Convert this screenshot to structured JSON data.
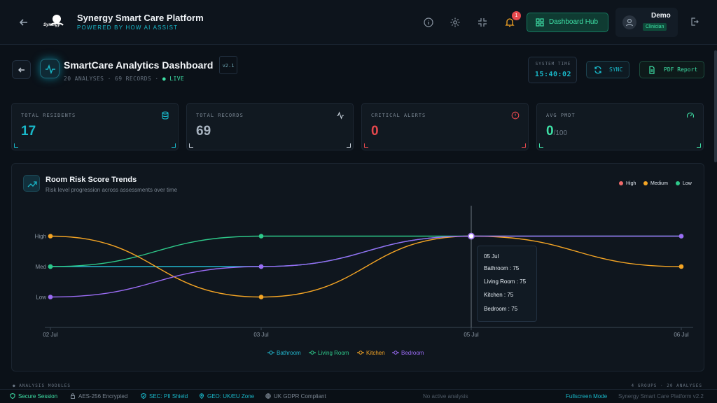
{
  "header": {
    "app_title": "Synergy Smart Care Platform",
    "app_subtitle": "POWERED BY HOW AI ASSIST",
    "logo_text": "Synergy",
    "notification_count": "1",
    "hub_button": "Dashboard Hub",
    "user_name": "Demo",
    "user_role": "Clinician"
  },
  "page": {
    "title": "SmartCare Analytics Dashboard",
    "version": "v2.1",
    "meta_prefix": "20 ANALYSES · 69 RECORDS · ",
    "meta_live": "● LIVE",
    "system_time_label": "SYSTEM TIME",
    "system_time": "15:40:02",
    "sync_label": "SYNC",
    "pdf_label": "PDF Report"
  },
  "stats": [
    {
      "label": "TOTAL RESIDENTS",
      "value": "17",
      "color": "#19b8c9"
    },
    {
      "label": "TOTAL RECORDS",
      "value": "69",
      "color": "#a8b3bf"
    },
    {
      "label": "CRITICAL ALERTS",
      "value": "0",
      "color": "#e5484d"
    },
    {
      "label": "AVG PMDT",
      "value": "0",
      "suffix": "/100",
      "color": "#3ee0a6"
    }
  ],
  "chart_card": {
    "title": "Room Risk Score Trends",
    "subtitle": "Risk level progression across assessments over time",
    "risk_legend": [
      {
        "label": "High",
        "color": "#f06a6a"
      },
      {
        "label": "Medium",
        "color": "#f5a524"
      },
      {
        "label": "Low",
        "color": "#2ec98a"
      }
    ]
  },
  "chart_data": {
    "type": "line",
    "x": [
      "02 Jul",
      "03 Jul",
      "05 Jul",
      "06 Jul"
    ],
    "y_tick_labels": [
      "Low",
      "Med",
      "High"
    ],
    "y_tick_values": [
      25,
      50,
      75
    ],
    "ylim": [
      0,
      100
    ],
    "grid": false,
    "legend": "bottom",
    "series": [
      {
        "name": "Bathroom",
        "color": "#22b8cf",
        "values": [
          50,
          50,
          75,
          null
        ]
      },
      {
        "name": "Living Room",
        "color": "#2ec98a",
        "values": [
          50,
          75,
          75,
          75
        ]
      },
      {
        "name": "Kitchen",
        "color": "#f5a524",
        "values": [
          75,
          25,
          75,
          50
        ]
      },
      {
        "name": "Bedroom",
        "color": "#9b6cf5",
        "values": [
          25,
          50,
          75,
          75
        ]
      }
    ],
    "tooltip": {
      "title": "05 Jul",
      "rows": [
        "Bathroom : 75",
        "Living Room : 75",
        "Kitchen : 75",
        "Bedroom : 75"
      ]
    }
  },
  "modules": {
    "left": "● ANALYSIS MODULES",
    "right": "4 GROUPS · 20 ANALYSES"
  },
  "footer": {
    "secure": "Secure Session",
    "aes": "AES-256 Encrypted",
    "sec": "SEC: PII Shield",
    "geo": "GEO: UK/EU Zone",
    "gdpr": "UK GDPR Compliant",
    "center": "No active analysis",
    "fullscreen": "Fullscreen Mode",
    "version": "Synergy Smart Care Platform v2.2"
  }
}
